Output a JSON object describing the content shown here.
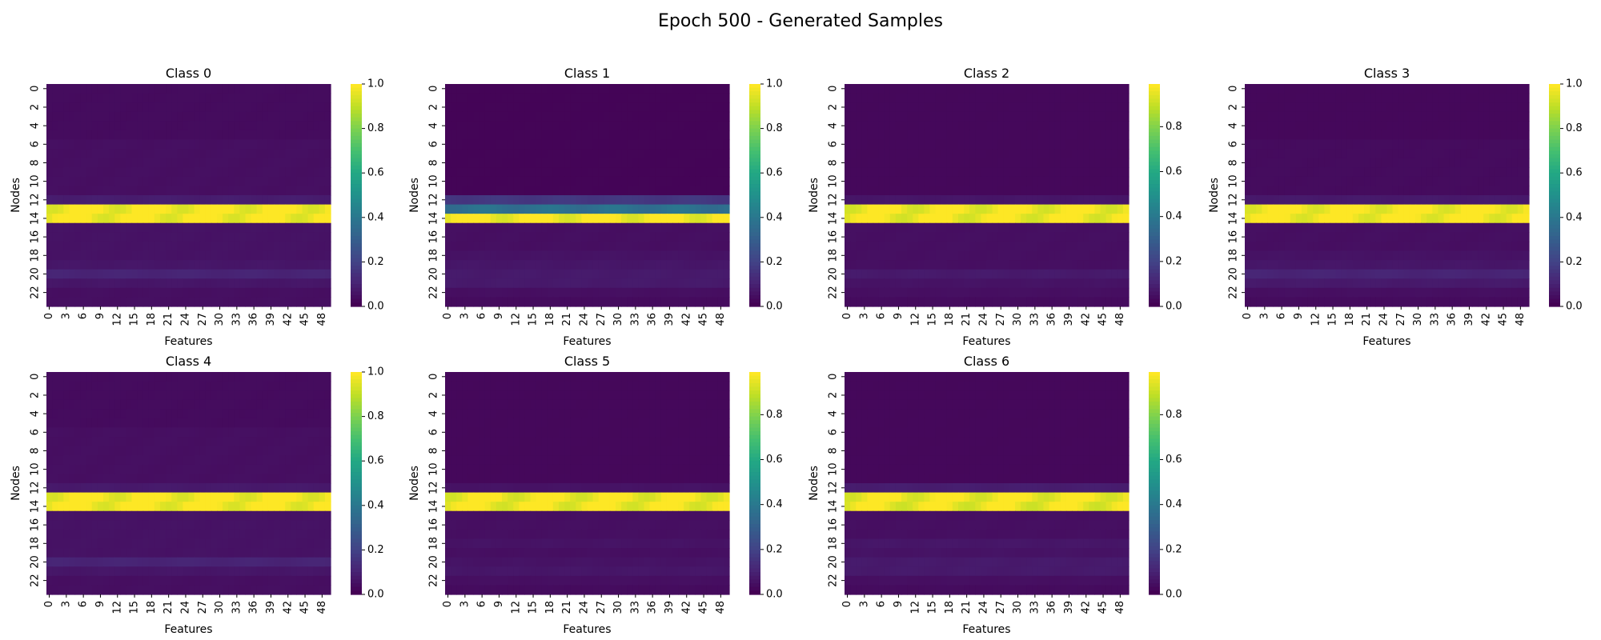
{
  "figure": {
    "title": "Epoch 500 - Generated Samples"
  },
  "chart_data": [
    {
      "type": "heatmap",
      "title": "Class 0",
      "xlabel": "Features",
      "ylabel": "Nodes",
      "rows": 24,
      "cols": 50,
      "x_ticks": [
        "0",
        "3",
        "6",
        "9",
        "12",
        "15",
        "18",
        "21",
        "24",
        "27",
        "30",
        "33",
        "36",
        "39",
        "42",
        "45",
        "48"
      ],
      "y_ticks": [
        "0",
        "2",
        "4",
        "6",
        "8",
        "10",
        "12",
        "14",
        "16",
        "18",
        "20",
        "22"
      ],
      "colorbar_ticks": [
        "0.0",
        "0.2",
        "0.4",
        "0.6",
        "0.8",
        "1.0"
      ],
      "vmin": 0.0,
      "vmax": 1.0,
      "colormap": "viridis",
      "row_values": [
        0.03,
        0.03,
        0.03,
        0.03,
        0.03,
        0.03,
        0.04,
        0.04,
        0.04,
        0.04,
        0.04,
        0.04,
        0.08,
        1.0,
        1.0,
        0.05,
        0.05,
        0.05,
        0.05,
        0.06,
        0.1,
        0.06,
        0.04,
        0.04
      ]
    },
    {
      "type": "heatmap",
      "title": "Class 1",
      "xlabel": "Features",
      "ylabel": "Nodes",
      "rows": 24,
      "cols": 50,
      "x_ticks": [
        "0",
        "3",
        "6",
        "9",
        "12",
        "15",
        "18",
        "21",
        "24",
        "27",
        "30",
        "33",
        "36",
        "39",
        "42",
        "45",
        "48"
      ],
      "y_ticks": [
        "0",
        "2",
        "4",
        "6",
        "8",
        "10",
        "12",
        "14",
        "16",
        "18",
        "20",
        "22"
      ],
      "colorbar_ticks": [
        "0.0",
        "0.2",
        "0.4",
        "0.6",
        "0.8",
        "1.0"
      ],
      "vmin": 0.0,
      "vmax": 1.0,
      "colormap": "viridis",
      "row_values": [
        0.01,
        0.01,
        0.01,
        0.01,
        0.01,
        0.01,
        0.01,
        0.01,
        0.01,
        0.01,
        0.01,
        0.01,
        0.16,
        0.37,
        1.0,
        0.04,
        0.04,
        0.04,
        0.05,
        0.06,
        0.07,
        0.07,
        0.04,
        0.03
      ]
    },
    {
      "type": "heatmap",
      "title": "Class 2",
      "xlabel": "Features",
      "ylabel": "Nodes",
      "rows": 24,
      "cols": 50,
      "x_ticks": [
        "0",
        "3",
        "6",
        "9",
        "12",
        "15",
        "18",
        "21",
        "24",
        "27",
        "30",
        "33",
        "36",
        "39",
        "42",
        "45",
        "48"
      ],
      "y_ticks": [
        "0",
        "2",
        "4",
        "6",
        "8",
        "10",
        "12",
        "14",
        "16",
        "18",
        "20",
        "22"
      ],
      "colorbar_ticks": [
        "0.0",
        "0.2",
        "0.4",
        "0.6",
        "0.8"
      ],
      "vmin": 0.0,
      "vmax": 0.99,
      "colormap": "viridis",
      "row_values": [
        0.02,
        0.02,
        0.02,
        0.02,
        0.02,
        0.02,
        0.02,
        0.02,
        0.02,
        0.02,
        0.02,
        0.02,
        0.06,
        0.98,
        0.98,
        0.04,
        0.04,
        0.04,
        0.04,
        0.04,
        0.07,
        0.05,
        0.04,
        0.03
      ]
    },
    {
      "type": "heatmap",
      "title": "Class 3",
      "xlabel": "Features",
      "ylabel": "Nodes",
      "rows": 24,
      "cols": 50,
      "x_ticks": [
        "0",
        "3",
        "6",
        "9",
        "12",
        "15",
        "18",
        "21",
        "24",
        "27",
        "30",
        "33",
        "36",
        "39",
        "42",
        "45",
        "48"
      ],
      "y_ticks": [
        "0",
        "2",
        "4",
        "6",
        "8",
        "10",
        "12",
        "14",
        "16",
        "18",
        "20",
        "22"
      ],
      "colorbar_ticks": [
        "0.0",
        "0.2",
        "0.4",
        "0.6",
        "0.8",
        "1.0"
      ],
      "vmin": 0.0,
      "vmax": 1.0,
      "colormap": "viridis",
      "row_values": [
        0.02,
        0.02,
        0.02,
        0.02,
        0.02,
        0.02,
        0.03,
        0.03,
        0.03,
        0.03,
        0.03,
        0.03,
        0.07,
        1.0,
        1.0,
        0.04,
        0.04,
        0.04,
        0.05,
        0.06,
        0.1,
        0.07,
        0.04,
        0.03
      ]
    },
    {
      "type": "heatmap",
      "title": "Class 4",
      "xlabel": "Features",
      "ylabel": "Nodes",
      "rows": 24,
      "cols": 50,
      "x_ticks": [
        "0",
        "3",
        "6",
        "9",
        "12",
        "15",
        "18",
        "21",
        "24",
        "27",
        "30",
        "33",
        "36",
        "39",
        "42",
        "45",
        "48"
      ],
      "y_ticks": [
        "0",
        "2",
        "4",
        "6",
        "8",
        "10",
        "12",
        "14",
        "16",
        "18",
        "20",
        "22"
      ],
      "colorbar_ticks": [
        "0.0",
        "0.2",
        "0.4",
        "0.6",
        "0.8",
        "1.0"
      ],
      "vmin": 0.0,
      "vmax": 1.0,
      "colormap": "viridis",
      "row_values": [
        0.03,
        0.03,
        0.03,
        0.03,
        0.03,
        0.03,
        0.04,
        0.04,
        0.04,
        0.04,
        0.04,
        0.04,
        0.07,
        1.0,
        1.0,
        0.05,
        0.05,
        0.05,
        0.05,
        0.05,
        0.1,
        0.06,
        0.04,
        0.04
      ]
    },
    {
      "type": "heatmap",
      "title": "Class 5",
      "xlabel": "Features",
      "ylabel": "Nodes",
      "rows": 24,
      "cols": 50,
      "x_ticks": [
        "0",
        "3",
        "6",
        "9",
        "12",
        "15",
        "18",
        "21",
        "24",
        "27",
        "30",
        "33",
        "36",
        "39",
        "42",
        "45",
        "48"
      ],
      "y_ticks": [
        "0",
        "2",
        "4",
        "6",
        "8",
        "10",
        "12",
        "14",
        "16",
        "18",
        "20",
        "22"
      ],
      "colorbar_ticks": [
        "0.0",
        "0.2",
        "0.4",
        "0.6",
        "0.8"
      ],
      "vmin": 0.0,
      "vmax": 0.99,
      "colormap": "viridis",
      "row_values": [
        0.02,
        0.02,
        0.02,
        0.02,
        0.02,
        0.02,
        0.02,
        0.02,
        0.02,
        0.02,
        0.02,
        0.02,
        0.05,
        0.98,
        0.98,
        0.04,
        0.04,
        0.04,
        0.05,
        0.04,
        0.05,
        0.06,
        0.04,
        0.03
      ]
    },
    {
      "type": "heatmap",
      "title": "Class 6",
      "xlabel": "Features",
      "ylabel": "Nodes",
      "rows": 24,
      "cols": 50,
      "x_ticks": [
        "0",
        "3",
        "6",
        "9",
        "12",
        "15",
        "18",
        "21",
        "24",
        "27",
        "30",
        "33",
        "36",
        "39",
        "42",
        "45",
        "48"
      ],
      "y_ticks": [
        "0",
        "2",
        "4",
        "6",
        "8",
        "10",
        "12",
        "14",
        "16",
        "18",
        "20",
        "22"
      ],
      "colorbar_ticks": [
        "0.0",
        "0.2",
        "0.4",
        "0.6",
        "0.8"
      ],
      "vmin": 0.0,
      "vmax": 0.99,
      "colormap": "viridis",
      "row_values": [
        0.02,
        0.02,
        0.02,
        0.02,
        0.02,
        0.02,
        0.02,
        0.02,
        0.02,
        0.02,
        0.02,
        0.02,
        0.08,
        0.98,
        0.97,
        0.04,
        0.04,
        0.04,
        0.06,
        0.05,
        0.07,
        0.07,
        0.04,
        0.03
      ]
    }
  ]
}
